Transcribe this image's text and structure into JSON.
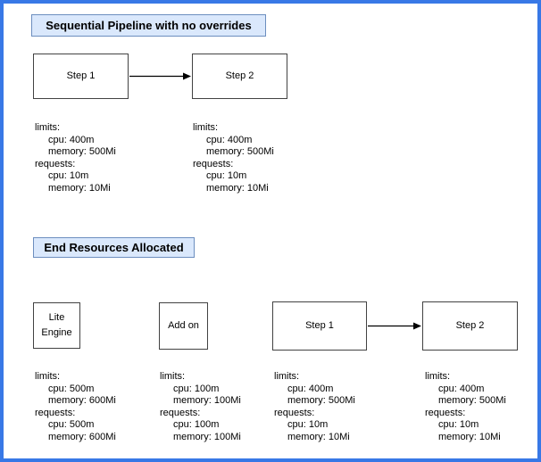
{
  "canvas": {
    "border_color": "#3878e6",
    "background_color": "#ffffff",
    "title_fill_color": "#dae8fc",
    "title_border_color": "#6c8ebf",
    "node_border_color": "#424242"
  },
  "sections": [
    {
      "title": "Sequential Pipeline with no overrides",
      "nodes": [
        {
          "label": "Step 1"
        },
        {
          "label": "Step 2"
        }
      ],
      "connections": [
        {
          "from": "Step 1",
          "to": "Step 2"
        }
      ],
      "resources": [
        {
          "node": "Step 1",
          "lines": [
            "limits:",
            "cpu: 400m",
            "memory: 500Mi",
            "requests:",
            "cpu: 10m",
            "memory: 10Mi"
          ]
        },
        {
          "node": "Step 2",
          "lines": [
            "limits:",
            "cpu: 400m",
            "memory: 500Mi",
            "requests:",
            "cpu: 10m",
            "memory: 10Mi"
          ]
        }
      ]
    },
    {
      "title": "End Resources Allocated",
      "nodes": [
        {
          "label": "Lite Engine"
        },
        {
          "label": "Add on"
        },
        {
          "label": "Step 1"
        },
        {
          "label": "Step 2"
        }
      ],
      "connections": [
        {
          "from": "Step 1",
          "to": "Step 2"
        }
      ],
      "resources": [
        {
          "node": "Lite Engine",
          "lines": [
            "limits:",
            "cpu: 500m",
            "memory: 600Mi",
            "requests:",
            "cpu: 500m",
            "memory: 600Mi"
          ]
        },
        {
          "node": "Add on",
          "lines": [
            "limits:",
            "cpu: 100m",
            "memory: 100Mi",
            "requests:",
            "cpu: 100m",
            "memory: 100Mi"
          ]
        },
        {
          "node": "Step 1",
          "lines": [
            "limits:",
            "cpu: 400m",
            "memory: 500Mi",
            "requests:",
            "cpu: 10m",
            "memory: 10Mi"
          ]
        },
        {
          "node": "Step 2",
          "lines": [
            "limits:",
            "cpu: 400m",
            "memory: 500Mi",
            "requests:",
            "cpu: 10m",
            "memory: 10Mi"
          ]
        }
      ]
    }
  ]
}
